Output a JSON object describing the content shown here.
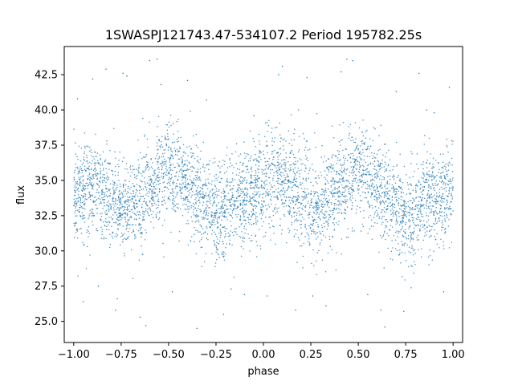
{
  "chart_data": {
    "type": "scatter",
    "title": "1SWASPJ121743.47-534107.2 Period 195782.25s",
    "xlabel": "phase",
    "ylabel": "flux",
    "xlim": [
      -1.05,
      1.05
    ],
    "ylim": [
      23.5,
      44.5
    ],
    "xticks": [
      -1.0,
      -0.75,
      -0.5,
      -0.25,
      0.0,
      0.25,
      0.5,
      0.75,
      1.0
    ],
    "xtick_labels": [
      "−1.00",
      "−0.75",
      "−0.50",
      "−0.25",
      "0.00",
      "0.25",
      "0.50",
      "0.75",
      "1.00"
    ],
    "yticks": [
      25.0,
      27.5,
      30.0,
      32.5,
      35.0,
      37.5,
      40.0,
      42.5
    ],
    "ytick_labels": [
      "25.0",
      "27.5",
      "30.0",
      "32.5",
      "35.0",
      "37.5",
      "40.0",
      "42.5"
    ],
    "grid": false,
    "legend": "none",
    "marker_color": "#1f77b4",
    "series": [
      {
        "trend_phase": [
          -1.0,
          -0.9,
          -0.8,
          -0.75,
          -0.7,
          -0.6,
          -0.5,
          -0.45,
          -0.4,
          -0.3,
          -0.25,
          -0.2,
          -0.1,
          0.0,
          0.05,
          0.1,
          0.2,
          0.25,
          0.3,
          0.4,
          0.5,
          0.55,
          0.6,
          0.7,
          0.75,
          0.8,
          0.9,
          1.0
        ],
        "trend_flux": [
          34.0,
          34.6,
          33.6,
          33.0,
          33.2,
          34.5,
          35.6,
          35.3,
          34.5,
          33.2,
          32.4,
          32.8,
          33.8,
          34.6,
          35.3,
          34.8,
          33.8,
          33.3,
          33.3,
          34.5,
          35.6,
          35.3,
          34.5,
          33.0,
          32.4,
          32.8,
          33.8,
          34.2
        ],
        "scatter_sd": 1.7,
        "outliers": [
          [
            -0.98,
            40.8
          ],
          [
            -0.95,
            26.4
          ],
          [
            -0.9,
            42.2
          ],
          [
            -0.87,
            27.5
          ],
          [
            -0.83,
            42.9
          ],
          [
            -0.78,
            25.8
          ],
          [
            -0.77,
            26.6
          ],
          [
            -0.74,
            42.6
          ],
          [
            -0.72,
            42.4
          ],
          [
            -0.65,
            25.3
          ],
          [
            -0.62,
            24.7
          ],
          [
            -0.6,
            43.5
          ],
          [
            -0.56,
            43.6
          ],
          [
            -0.54,
            41.8
          ],
          [
            -0.48,
            27.1
          ],
          [
            -0.4,
            42.1
          ],
          [
            -0.35,
            24.5
          ],
          [
            -0.3,
            40.7
          ],
          [
            -0.21,
            25.5
          ],
          [
            -0.17,
            27.3
          ],
          [
            -0.1,
            26.9
          ],
          [
            -0.05,
            39.6
          ],
          [
            0.02,
            26.8
          ],
          [
            0.08,
            42.5
          ],
          [
            0.1,
            43.1
          ],
          [
            0.17,
            25.8
          ],
          [
            0.23,
            42.3
          ],
          [
            0.26,
            26.8
          ],
          [
            0.33,
            26.1
          ],
          [
            0.41,
            42.7
          ],
          [
            0.44,
            43.6
          ],
          [
            0.47,
            43.5
          ],
          [
            0.55,
            26.9
          ],
          [
            0.62,
            25.8
          ],
          [
            0.64,
            24.6
          ],
          [
            0.7,
            41.3
          ],
          [
            0.74,
            25.7
          ],
          [
            0.82,
            42.6
          ],
          [
            0.86,
            40.0
          ],
          [
            0.9,
            39.8
          ],
          [
            0.95,
            27.1
          ],
          [
            0.98,
            41.6
          ]
        ]
      }
    ]
  }
}
